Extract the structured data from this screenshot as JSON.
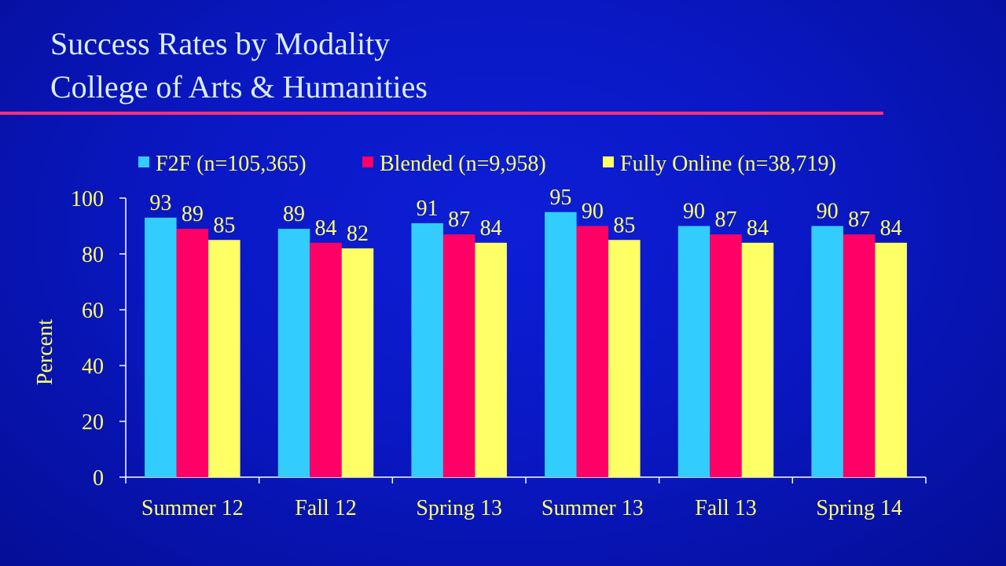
{
  "slide": {
    "title_line1": "Success Rates by Modality",
    "title_line2": "College of Arts & Humanities"
  },
  "colors": {
    "text": "#ffff66",
    "title": "#dcecff",
    "rule": "#ff2f7e",
    "axis": "#ffffff"
  },
  "chart_data": {
    "type": "bar",
    "ylabel": "Percent",
    "ylim": [
      0,
      100
    ],
    "yticks": [
      0,
      20,
      40,
      60,
      80,
      100
    ],
    "grid": false,
    "legend_position": "top",
    "categories": [
      "Summer 12",
      "Fall 12",
      "Spring 13",
      "Summer 13",
      "Fall 13",
      "Spring 14"
    ],
    "series": [
      {
        "name": "F2F (n=105,365)",
        "color": "#33ccff",
        "values": [
          93,
          89,
          91,
          95,
          90,
          90
        ]
      },
      {
        "name": "Blended (n=9,958)",
        "color": "#ff0066",
        "values": [
          89,
          84,
          87,
          90,
          87,
          87
        ]
      },
      {
        "name": "Fully Online (n=38,719)",
        "color": "#ffff66",
        "values": [
          85,
          82,
          84,
          85,
          84,
          84
        ]
      }
    ]
  }
}
